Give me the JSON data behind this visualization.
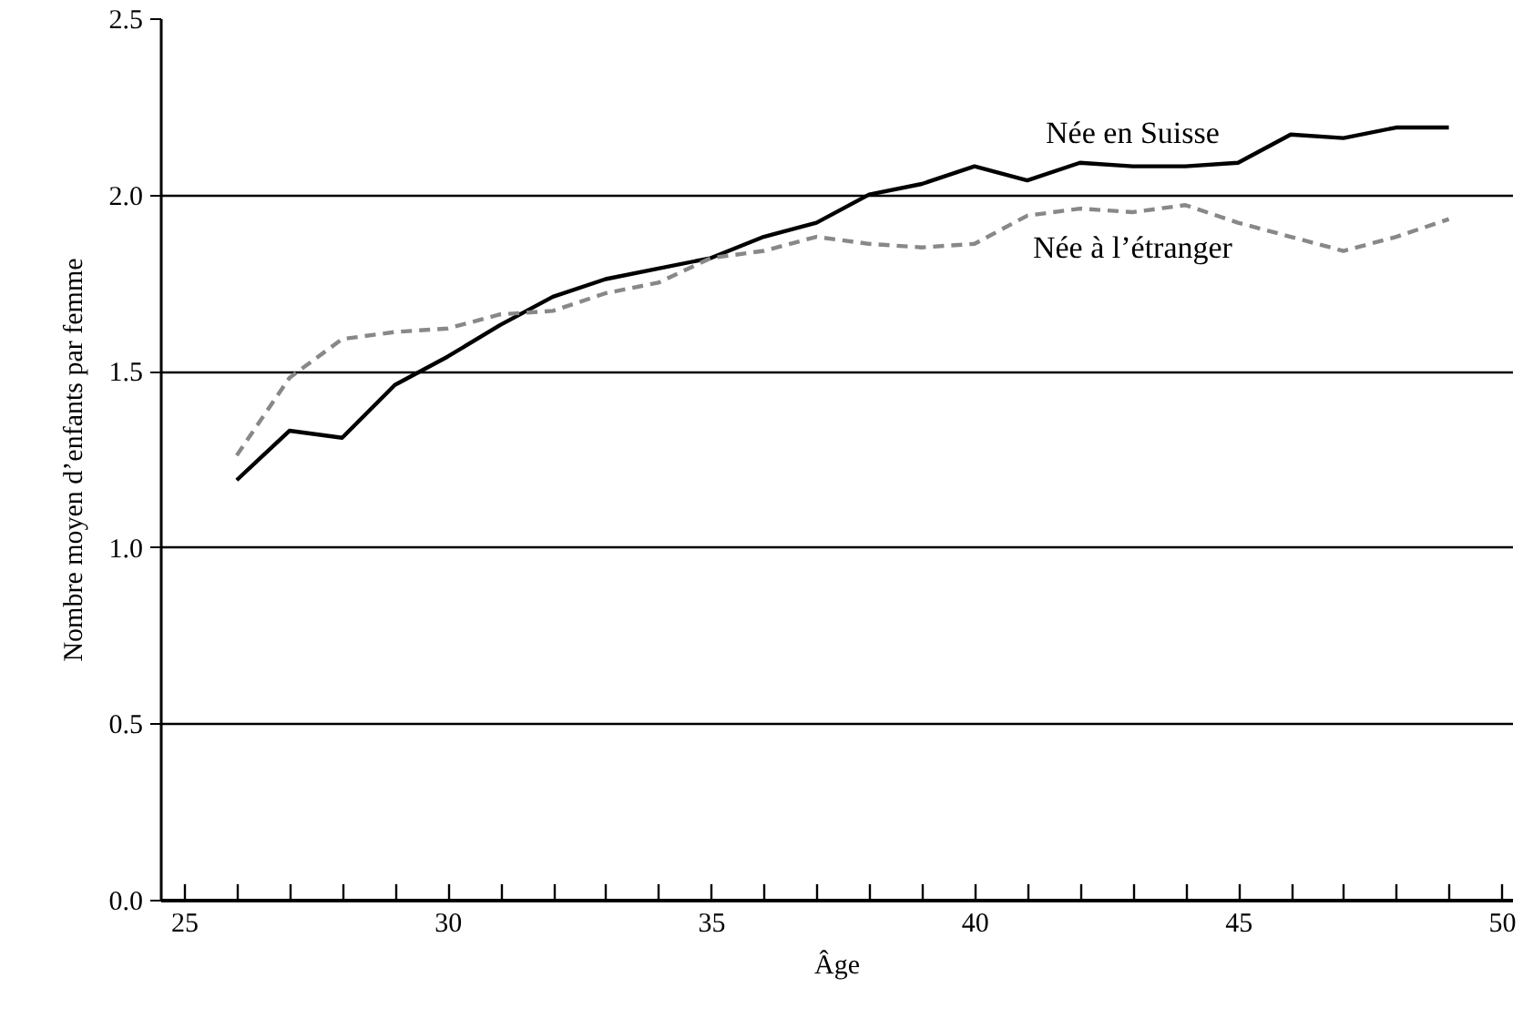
{
  "chart_data": {
    "type": "line",
    "xlabel": "Âge",
    "ylabel": "Nombre moyen d’enfants par femme",
    "x": [
      26,
      27,
      28,
      29,
      30,
      31,
      32,
      33,
      34,
      35,
      36,
      37,
      38,
      39,
      40,
      41,
      42,
      43,
      44,
      45,
      46,
      47,
      48,
      49
    ],
    "series": [
      {
        "name": "Née en Suisse",
        "color": "#000000",
        "line_style": "solid",
        "values": [
          1.19,
          1.33,
          1.31,
          1.46,
          1.54,
          1.63,
          1.71,
          1.76,
          1.79,
          1.82,
          1.88,
          1.92,
          2.0,
          2.03,
          2.08,
          2.04,
          2.09,
          2.08,
          2.08,
          2.09,
          2.17,
          2.16,
          2.19,
          2.19
        ]
      },
      {
        "name": "Née à l’étranger",
        "color": "#888888",
        "line_style": "dashed",
        "values": [
          1.26,
          1.48,
          1.59,
          1.61,
          1.62,
          1.66,
          1.67,
          1.72,
          1.75,
          1.82,
          1.84,
          1.88,
          1.86,
          1.85,
          1.86,
          1.94,
          1.96,
          1.95,
          1.97,
          1.92,
          1.88,
          1.84,
          1.88,
          1.93
        ]
      }
    ],
    "xlim": [
      24.55,
      50.2
    ],
    "xticks": [
      25,
      {
        "value": 26,
        "label": null
      },
      {
        "value": 27,
        "label": null
      },
      {
        "value": 28,
        "label": null
      },
      {
        "value": 29,
        "label": null
      },
      30,
      {
        "value": 31,
        "label": null
      },
      {
        "value": 32,
        "label": null
      },
      {
        "value": 33,
        "label": null
      },
      {
        "value": 34,
        "label": null
      },
      35,
      {
        "value": 36,
        "label": null
      },
      {
        "value": 37,
        "label": null
      },
      {
        "value": 38,
        "label": null
      },
      {
        "value": 39,
        "label": null
      },
      40,
      {
        "value": 41,
        "label": null
      },
      {
        "value": 42,
        "label": null
      },
      {
        "value": 43,
        "label": null
      },
      {
        "value": 44,
        "label": null
      },
      45,
      {
        "value": 46,
        "label": null
      },
      {
        "value": 47,
        "label": null
      },
      {
        "value": 48,
        "label": null
      },
      {
        "value": 49,
        "label": null
      },
      50
    ],
    "ylim": [
      0,
      2.5
    ],
    "yticks": [
      {
        "value": 0,
        "label": "0.0"
      },
      {
        "value": 0.5,
        "label": "0.5"
      },
      {
        "value": 1,
        "label": "1.0"
      },
      {
        "value": 1.5,
        "label": "1.5"
      },
      {
        "value": 2,
        "label": "2.0"
      },
      {
        "value": 2.5,
        "label": "2.5"
      }
    ],
    "grid": "y",
    "marker": "none"
  }
}
